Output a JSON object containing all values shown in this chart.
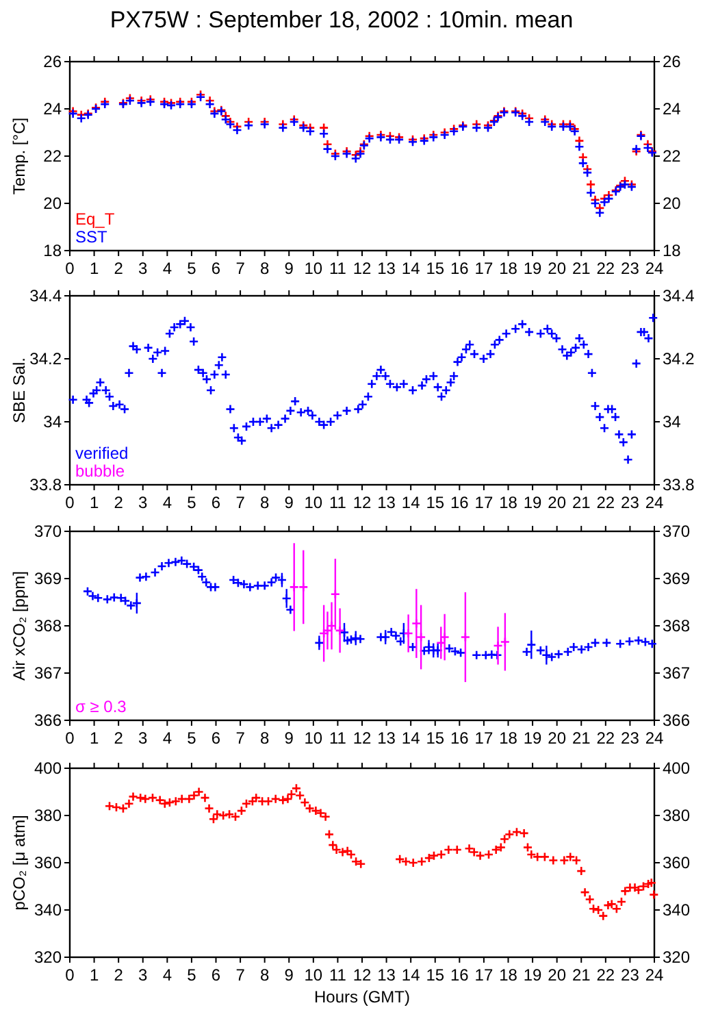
{
  "chart_data": [
    {
      "type": "scatter",
      "title": "PX75W : September 18, 2002 : 10min. mean",
      "ylabel": "Temp. [°C]",
      "marker": "cross",
      "grid": false,
      "legend": "bottom left",
      "xlim": [
        0,
        24
      ],
      "xticks": [
        0,
        1,
        2,
        3,
        4,
        5,
        6,
        7,
        8,
        9,
        10,
        11,
        12,
        13,
        14,
        15,
        16,
        17,
        18,
        19,
        20,
        21,
        22,
        23,
        24
      ],
      "ylim": [
        18,
        26
      ],
      "yticks": [
        18,
        20,
        22,
        24,
        26
      ],
      "y2lim": [
        18,
        26
      ],
      "y2ticks": [
        18,
        20,
        22,
        24,
        26
      ],
      "x": [
        0.13,
        0.47,
        0.75,
        1.07,
        1.44,
        2.19,
        2.47,
        2.94,
        3.31,
        3.88,
        4.16,
        4.53,
        5.0,
        5.37,
        5.75,
        5.94,
        6.22,
        6.4,
        6.59,
        6.87,
        7.34,
        8.0,
        8.75,
        9.21,
        9.59,
        9.87,
        10.43,
        10.58,
        10.9,
        11.37,
        11.74,
        11.93,
        12.08,
        12.3,
        12.77,
        13.15,
        13.52,
        14.08,
        14.55,
        14.93,
        15.39,
        15.77,
        16.14,
        16.7,
        17.17,
        17.42,
        17.58,
        17.83,
        18.3,
        18.58,
        18.86,
        19.51,
        19.79,
        20.26,
        20.54,
        20.73,
        20.92,
        21.07,
        21.25,
        21.39,
        21.57,
        21.76,
        21.95,
        22.13,
        22.42,
        22.6,
        22.79,
        23.07,
        23.26,
        23.45,
        23.73,
        23.91
      ],
      "series": [
        {
          "name": "Eq_T",
          "color": "#ff0000",
          "values": [
            23.9,
            23.75,
            23.8,
            24.05,
            24.3,
            24.25,
            24.45,
            24.35,
            24.4,
            24.3,
            24.25,
            24.3,
            24.3,
            24.6,
            24.35,
            23.9,
            23.95,
            23.7,
            23.45,
            23.25,
            23.45,
            23.45,
            23.35,
            23.55,
            23.3,
            23.2,
            23.2,
            22.5,
            22.1,
            22.2,
            22.05,
            22.2,
            22.5,
            22.85,
            22.9,
            22.85,
            22.8,
            22.7,
            22.75,
            22.9,
            23.0,
            23.15,
            23.3,
            23.35,
            23.3,
            23.5,
            23.7,
            23.9,
            23.9,
            23.8,
            23.6,
            23.55,
            23.35,
            23.35,
            23.35,
            23.15,
            22.65,
            21.95,
            21.45,
            20.8,
            20.15,
            19.8,
            20.2,
            20.35,
            20.55,
            20.75,
            20.95,
            20.8,
            22.2,
            22.9,
            22.5,
            22.2
          ]
        },
        {
          "name": "SST",
          "color": "#0000ff",
          "values": [
            23.8,
            23.6,
            23.75,
            24.0,
            24.2,
            24.2,
            24.35,
            24.25,
            24.3,
            24.2,
            24.15,
            24.2,
            24.2,
            24.5,
            24.2,
            23.8,
            23.9,
            23.55,
            23.35,
            23.1,
            23.3,
            23.35,
            23.2,
            23.45,
            23.2,
            23.05,
            22.95,
            22.3,
            22.0,
            22.1,
            21.9,
            22.1,
            22.45,
            22.75,
            22.8,
            22.7,
            22.7,
            22.6,
            22.65,
            22.8,
            22.9,
            23.05,
            23.25,
            23.2,
            23.2,
            23.45,
            23.65,
            23.85,
            23.85,
            23.7,
            23.45,
            23.45,
            23.25,
            23.25,
            23.25,
            23.05,
            22.4,
            21.7,
            21.3,
            20.45,
            20.0,
            19.6,
            20.05,
            20.2,
            20.5,
            20.7,
            20.8,
            20.7,
            22.3,
            22.85,
            22.35,
            22.15
          ]
        }
      ]
    },
    {
      "type": "scatter",
      "ylabel": "SBE Sal.",
      "marker": "cross",
      "grid": false,
      "legend": "bottom left",
      "xlim": [
        0,
        24
      ],
      "xticks": [
        0,
        1,
        2,
        3,
        4,
        5,
        6,
        7,
        8,
        9,
        10,
        11,
        12,
        13,
        14,
        15,
        16,
        17,
        18,
        19,
        20,
        21,
        22,
        23,
        24
      ],
      "ylim": [
        33.8,
        34.4
      ],
      "yticks": [
        33.8,
        34,
        34.2,
        34.4
      ],
      "y2lim": [
        33.8,
        34.4
      ],
      "y2ticks": [
        33.8,
        34,
        34.2,
        34.4
      ],
      "series": [
        {
          "name": "verified",
          "color": "#0000ff",
          "x": [
            0.13,
            0.69,
            0.79,
            0.97,
            1.1,
            1.25,
            1.48,
            1.63,
            1.78,
            2.04,
            2.25,
            2.43,
            2.6,
            2.75,
            3.22,
            3.41,
            3.6,
            3.78,
            3.91,
            4.1,
            4.29,
            4.53,
            4.72,
            4.96,
            5.09,
            5.28,
            5.47,
            5.62,
            5.79,
            5.94,
            6.12,
            6.25,
            6.4,
            6.59,
            6.74,
            6.91,
            7.06,
            7.25,
            7.53,
            7.81,
            8.09,
            8.28,
            8.56,
            8.84,
            9.06,
            9.25,
            9.49,
            9.78,
            9.96,
            10.24,
            10.43,
            10.71,
            10.99,
            11.37,
            11.84,
            12.02,
            12.25,
            12.4,
            12.6,
            12.77,
            12.96,
            13.15,
            13.43,
            13.71,
            14.08,
            14.46,
            14.64,
            14.93,
            15.11,
            15.26,
            15.45,
            15.64,
            15.77,
            15.92,
            16.09,
            16.27,
            16.42,
            16.61,
            16.99,
            17.27,
            17.45,
            17.64,
            17.92,
            18.3,
            18.58,
            18.86,
            19.33,
            19.61,
            19.79,
            19.98,
            20.22,
            20.41,
            20.58,
            20.77,
            20.92,
            21.1,
            21.29,
            21.44,
            21.57,
            21.76,
            21.95,
            22.1,
            22.26,
            22.4,
            22.55,
            22.73,
            22.92,
            23.07,
            23.26,
            23.45,
            23.58,
            23.76,
            23.95
          ],
          "values": [
            34.07,
            34.07,
            34.06,
            34.09,
            34.1,
            34.125,
            34.1,
            34.08,
            34.05,
            34.055,
            34.04,
            34.155,
            34.24,
            34.23,
            34.235,
            34.2,
            34.22,
            34.155,
            34.225,
            34.28,
            34.3,
            34.31,
            34.32,
            34.3,
            34.255,
            34.165,
            34.155,
            34.135,
            34.1,
            34.15,
            34.18,
            34.205,
            34.15,
            34.04,
            33.98,
            33.95,
            33.94,
            33.985,
            34.0,
            34.0,
            34.01,
            33.98,
            33.99,
            34.01,
            34.035,
            34.065,
            34.03,
            34.035,
            34.02,
            34.0,
            33.99,
            34.0,
            34.02,
            34.035,
            34.04,
            34.055,
            34.08,
            34.12,
            34.145,
            34.165,
            34.145,
            34.12,
            34.11,
            34.12,
            34.1,
            34.115,
            34.135,
            34.145,
            34.11,
            34.08,
            34.1,
            34.125,
            34.145,
            34.19,
            34.205,
            34.23,
            34.245,
            34.215,
            34.2,
            34.215,
            34.245,
            34.26,
            34.28,
            34.295,
            34.31,
            34.285,
            34.28,
            34.295,
            34.28,
            34.265,
            34.23,
            34.21,
            34.22,
            34.235,
            34.265,
            34.245,
            34.215,
            34.155,
            34.05,
            34.015,
            33.98,
            34.04,
            34.04,
            34.015,
            33.96,
            33.935,
            33.88,
            33.96,
            34.185,
            34.285,
            34.285,
            34.265,
            34.33
          ]
        },
        {
          "name": "bubble",
          "color": "#ff00ff"
        }
      ]
    },
    {
      "type": "scatter",
      "ylabel": "Air xCO₂ [ppm]",
      "marker": "cross",
      "grid": false,
      "legend": "bottom left",
      "xlim": [
        0,
        24
      ],
      "xticks": [
        0,
        1,
        2,
        3,
        4,
        5,
        6,
        7,
        8,
        9,
        10,
        11,
        12,
        13,
        14,
        15,
        16,
        17,
        18,
        19,
        20,
        21,
        22,
        23,
        24
      ],
      "ylim": [
        366,
        370
      ],
      "yticks": [
        366,
        367,
        368,
        369,
        370
      ],
      "y2lim": [
        366,
        370
      ],
      "y2ticks": [
        366,
        367,
        368,
        369,
        370
      ],
      "series": [
        {
          "color": "#0000ff",
          "x": [
            0.73,
            0.94,
            1.16,
            1.54,
            1.82,
            2.1,
            2.28,
            2.51,
            2.75,
            2.88,
            3.13,
            3.5,
            3.78,
            4.06,
            4.34,
            4.59,
            4.81,
            5.09,
            5.28,
            5.43,
            5.6,
            5.79,
            5.97,
            6.72,
            6.91,
            7.15,
            7.4,
            7.72,
            8.0,
            8.28,
            8.46,
            8.71,
            8.9,
            9.06,
            10.24,
            11.27,
            11.4,
            11.55,
            11.74,
            11.93,
            12.77,
            12.96,
            13.2,
            13.39,
            13.58,
            13.71,
            14.08,
            14.55,
            14.74,
            14.93,
            15.11,
            15.58,
            15.82,
            16.05,
            16.7,
            17.08,
            17.32,
            17.55,
            18.76,
            18.95,
            19.33,
            19.57,
            19.79,
            20.07,
            20.45,
            20.69,
            21.01,
            21.29,
            21.57,
            22.04,
            22.6,
            22.98,
            23.35,
            23.63,
            23.91
          ],
          "values": [
            368.73,
            368.63,
            368.59,
            368.56,
            368.6,
            368.59,
            368.53,
            368.43,
            368.48,
            369.02,
            369.04,
            369.13,
            369.26,
            369.33,
            369.35,
            369.38,
            369.31,
            369.25,
            369.18,
            369.04,
            368.92,
            368.82,
            368.82,
            368.97,
            368.91,
            368.88,
            368.82,
            368.85,
            368.85,
            368.92,
            369.02,
            368.97,
            368.58,
            368.34,
            367.64,
            367.86,
            367.69,
            367.71,
            367.74,
            367.72,
            367.76,
            367.76,
            367.87,
            367.79,
            367.67,
            367.84,
            367.55,
            367.47,
            367.55,
            367.48,
            367.48,
            367.52,
            367.46,
            367.43,
            367.38,
            367.38,
            367.39,
            367.38,
            367.45,
            367.6,
            367.48,
            367.38,
            367.34,
            367.4,
            367.45,
            367.55,
            367.5,
            367.55,
            367.64,
            367.64,
            367.62,
            367.67,
            367.69,
            367.66,
            367.62
          ],
          "errors": [
            null,
            null,
            null,
            null,
            null,
            null,
            null,
            null,
            0.22,
            null,
            null,
            null,
            null,
            null,
            null,
            null,
            null,
            null,
            null,
            null,
            null,
            null,
            null,
            null,
            null,
            null,
            null,
            null,
            null,
            null,
            null,
            0.15,
            0.2,
            null,
            0.15,
            0.2,
            null,
            null,
            0.15,
            null,
            null,
            0.15,
            null,
            null,
            null,
            0.22,
            null,
            null,
            0.15,
            0.15,
            0.15,
            null,
            null,
            null,
            null,
            null,
            null,
            null,
            null,
            0.3,
            null,
            0.2,
            null,
            null,
            null,
            null,
            null,
            null,
            null,
            null,
            null,
            null,
            null,
            null,
            null
          ]
        },
        {
          "name": "σ ≥ 0.3",
          "color": "#ff00ff",
          "x": [
            9.21,
            9.59,
            10.43,
            10.58,
            10.75,
            10.9,
            11.09,
            13.9,
            14.23,
            14.42,
            15.24,
            15.39,
            16.24,
            17.58,
            17.87
          ],
          "values": [
            368.82,
            368.82,
            367.84,
            367.9,
            368.0,
            368.67,
            367.9,
            367.84,
            368.05,
            367.76,
            367.64,
            367.76,
            367.76,
            367.58,
            367.66
          ],
          "errors": [
            0.93,
            0.78,
            0.6,
            0.4,
            0.5,
            0.75,
            0.47,
            0.4,
            0.73,
            0.68,
            0.34,
            0.49,
            0.95,
            0.4,
            0.61
          ]
        }
      ]
    },
    {
      "type": "scatter",
      "ylabel": "pCO₂ [μ atm]",
      "xlabel": "Hours (GMT)",
      "marker": "cross",
      "grid": false,
      "xlim": [
        0,
        24
      ],
      "xticks": [
        0,
        1,
        2,
        3,
        4,
        5,
        6,
        7,
        8,
        9,
        10,
        11,
        12,
        13,
        14,
        15,
        16,
        17,
        18,
        19,
        20,
        21,
        22,
        23,
        24
      ],
      "ylim": [
        320,
        400
      ],
      "yticks": [
        320,
        340,
        360,
        380,
        400
      ],
      "y2lim": [
        320,
        400
      ],
      "y2ticks": [
        320,
        340,
        360,
        380,
        400
      ],
      "series": [
        {
          "color": "#ff0000",
          "x": [
            1.63,
            1.91,
            2.19,
            2.43,
            2.6,
            2.9,
            3.1,
            3.4,
            3.7,
            3.9,
            4.1,
            4.35,
            4.6,
            4.9,
            5.1,
            5.3,
            5.55,
            5.72,
            5.9,
            6.05,
            6.3,
            6.55,
            6.8,
            7.05,
            7.25,
            7.5,
            7.65,
            7.9,
            8.15,
            8.45,
            8.75,
            8.95,
            9.1,
            9.3,
            9.45,
            9.65,
            9.85,
            10.1,
            10.3,
            10.5,
            10.65,
            10.8,
            10.95,
            11.2,
            11.4,
            11.55,
            11.75,
            11.95,
            13.55,
            13.8,
            14.1,
            14.45,
            14.75,
            14.95,
            15.25,
            15.55,
            15.9,
            16.4,
            16.6,
            16.85,
            17.2,
            17.5,
            17.7,
            17.85,
            18.05,
            18.35,
            18.65,
            18.8,
            18.95,
            19.2,
            19.5,
            19.85,
            20.3,
            20.55,
            20.8,
            21.0,
            21.15,
            21.35,
            21.5,
            21.7,
            21.9,
            22.1,
            22.25,
            22.45,
            22.65,
            22.8,
            23.0,
            23.2,
            23.35,
            23.55,
            23.75,
            23.88,
            23.98
          ],
          "values": [
            384,
            383.5,
            383,
            385,
            388,
            387.5,
            387,
            387.5,
            386.5,
            385,
            385.5,
            386,
            387,
            387,
            388.5,
            390,
            387.5,
            383,
            378.5,
            380.5,
            380,
            380.5,
            379.5,
            382,
            385,
            386,
            387.5,
            386,
            386,
            387,
            386.5,
            387,
            389,
            391.5,
            388.5,
            385.5,
            383,
            382,
            381,
            379.5,
            372,
            367.5,
            365.5,
            364.5,
            365,
            363.5,
            360.5,
            359.5,
            361.5,
            360.5,
            360,
            360.5,
            362,
            363,
            363.5,
            365.5,
            365.5,
            366,
            364.5,
            363,
            363.5,
            365.5,
            366.5,
            370,
            372,
            373,
            372.5,
            366.5,
            363.5,
            362.5,
            362.5,
            361,
            361,
            362.5,
            361,
            356.5,
            347.5,
            344.5,
            340.5,
            340,
            337.5,
            342,
            342.5,
            340.5,
            343.5,
            348,
            349.5,
            349.5,
            348.5,
            350,
            351,
            351.5,
            346.5
          ]
        }
      ]
    }
  ]
}
